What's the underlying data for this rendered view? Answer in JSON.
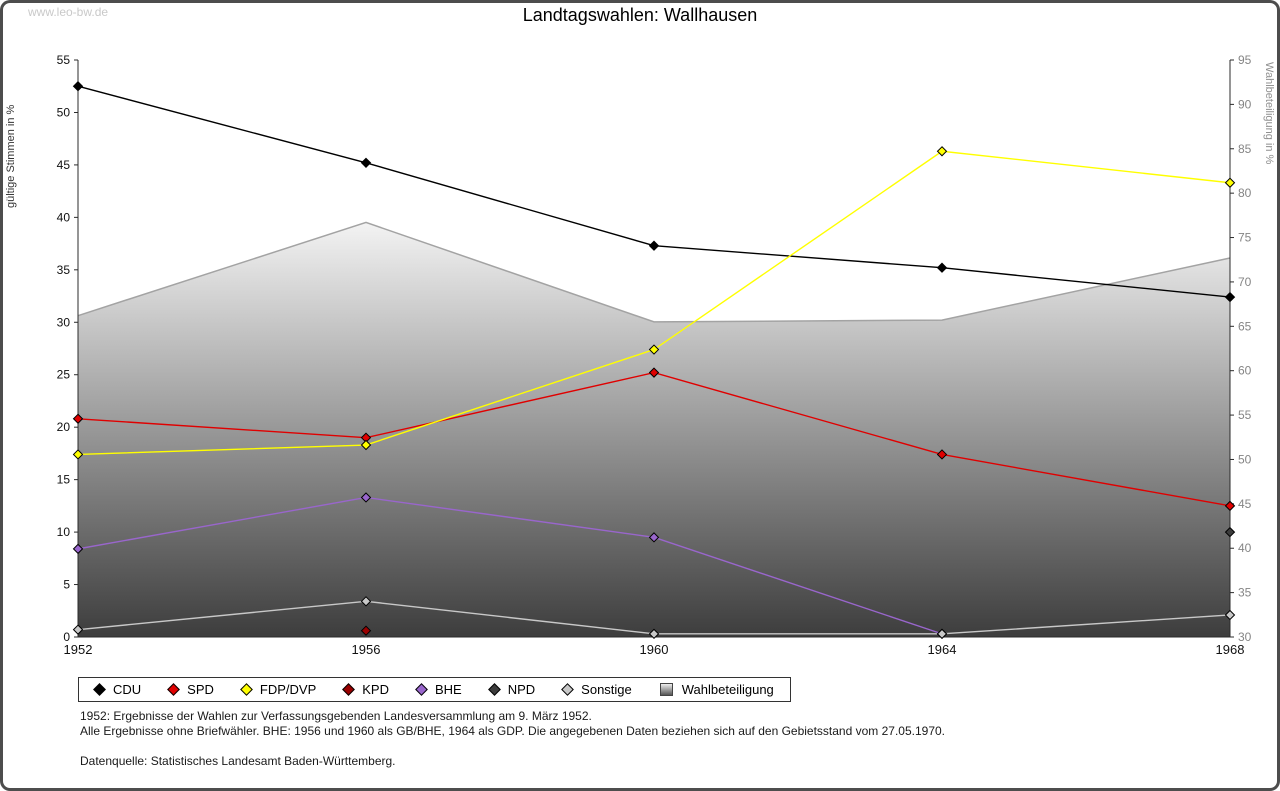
{
  "page": {
    "watermark": "www.leo-bw.de"
  },
  "chart_data": {
    "type": "line",
    "title": "Landtagswahlen: Wallhausen",
    "categories": [
      "1952",
      "1956",
      "1960",
      "1964",
      "1968"
    ],
    "ylabel_left": "gültige Stimmen in %",
    "ylabel_right": "Wahlbeteiligung in %",
    "ylim_left": [
      0,
      55
    ],
    "ylim_right": [
      30,
      95
    ],
    "yticks_left": [
      0,
      5,
      10,
      15,
      20,
      25,
      30,
      35,
      40,
      45,
      50,
      55
    ],
    "yticks_right": [
      30,
      35,
      40,
      45,
      50,
      55,
      60,
      65,
      70,
      75,
      80,
      85,
      90,
      95
    ],
    "grid": false,
    "legend_position": "bottom",
    "series": [
      {
        "name": "CDU",
        "color": "#000000",
        "values": [
          52.5,
          45.2,
          37.3,
          35.2,
          32.4
        ]
      },
      {
        "name": "SPD",
        "color": "#e00000",
        "values": [
          20.8,
          19.0,
          25.2,
          17.4,
          12.5
        ]
      },
      {
        "name": "FDP/DVP",
        "color": "#ffff00",
        "values": [
          17.4,
          18.3,
          27.4,
          46.3,
          43.3
        ]
      },
      {
        "name": "KPD",
        "color": "#990000",
        "values": [
          null,
          0.6,
          null,
          null,
          null
        ]
      },
      {
        "name": "BHE",
        "color": "#9966cc",
        "values": [
          8.4,
          13.3,
          9.5,
          0.3,
          null
        ]
      },
      {
        "name": "NPD",
        "color": "#3c3c3c",
        "values": [
          null,
          null,
          null,
          null,
          10.0
        ]
      },
      {
        "name": "Sonstige",
        "color": "#c8c8c8",
        "values": [
          0.7,
          3.4,
          0.3,
          0.3,
          2.1
        ]
      }
    ],
    "area": {
      "name": "Wahlbeteiligung",
      "axis": "right",
      "values": [
        66.2,
        76.7,
        65.5,
        65.7,
        72.7
      ],
      "line_color": "#a3a3a3",
      "fill_top": "#f3f3f3",
      "fill_bottom": "#3d3d3d"
    }
  },
  "footnotes": [
    "1952: Ergebnisse der Wahlen zur Verfassungsgebenden Landesversammlung am 9. März 1952.",
    "Alle Ergebnisse ohne Briefwähler. BHE: 1956 und 1960 als GB/BHE, 1964 als GDP. Die angegebenen Daten beziehen sich auf den Gebietsstand vom 27.05.1970.",
    "Datenquelle: Statistisches Landesamt Baden-Württemberg."
  ]
}
